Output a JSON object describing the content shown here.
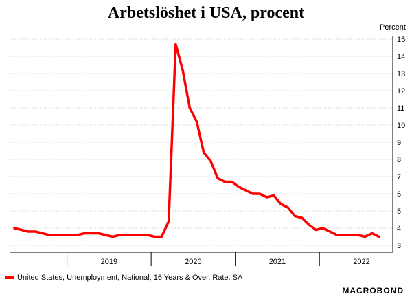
{
  "chart_data": {
    "type": "line",
    "title": "Arbetslöshet i USA, procent",
    "ylabel": "Percent",
    "ylim": [
      3,
      15
    ],
    "yticks": [
      3,
      4,
      5,
      6,
      7,
      8,
      9,
      10,
      11,
      12,
      13,
      14,
      15
    ],
    "x_ticks": [
      "2019",
      "2020",
      "2021",
      "2022"
    ],
    "grid": "horizontal",
    "legend": "bottom-left",
    "color": "#ff0000",
    "series": [
      {
        "name": "United States, Unemployment, National, 16 Years & Over, Rate, SA",
        "x": [
          "2018-05",
          "2018-06",
          "2018-07",
          "2018-08",
          "2018-09",
          "2018-10",
          "2018-11",
          "2018-12",
          "2019-01",
          "2019-02",
          "2019-03",
          "2019-04",
          "2019-05",
          "2019-06",
          "2019-07",
          "2019-08",
          "2019-09",
          "2019-10",
          "2019-11",
          "2019-12",
          "2020-01",
          "2020-02",
          "2020-03",
          "2020-04",
          "2020-05",
          "2020-06",
          "2020-07",
          "2020-08",
          "2020-09",
          "2020-10",
          "2020-11",
          "2020-12",
          "2021-01",
          "2021-02",
          "2021-03",
          "2021-04",
          "2021-05",
          "2021-06",
          "2021-07",
          "2021-08",
          "2021-09",
          "2021-10",
          "2021-11",
          "2021-12",
          "2022-01",
          "2022-02",
          "2022-03",
          "2022-04",
          "2022-05",
          "2022-06",
          "2022-07",
          "2022-08",
          "2022-09"
        ],
        "values": [
          4.0,
          3.9,
          3.8,
          3.8,
          3.7,
          3.6,
          3.6,
          3.6,
          3.6,
          3.6,
          3.7,
          3.7,
          3.7,
          3.6,
          3.5,
          3.6,
          3.6,
          3.6,
          3.6,
          3.6,
          3.5,
          3.5,
          4.4,
          14.7,
          13.2,
          11.0,
          10.2,
          8.4,
          7.9,
          6.9,
          6.7,
          6.7,
          6.4,
          6.2,
          6.0,
          6.0,
          5.8,
          5.9,
          5.4,
          5.2,
          4.7,
          4.6,
          4.2,
          3.9,
          4.0,
          3.8,
          3.6,
          3.6,
          3.6,
          3.6,
          3.5,
          3.7,
          3.5
        ]
      }
    ]
  },
  "brand": "MACROBOND"
}
